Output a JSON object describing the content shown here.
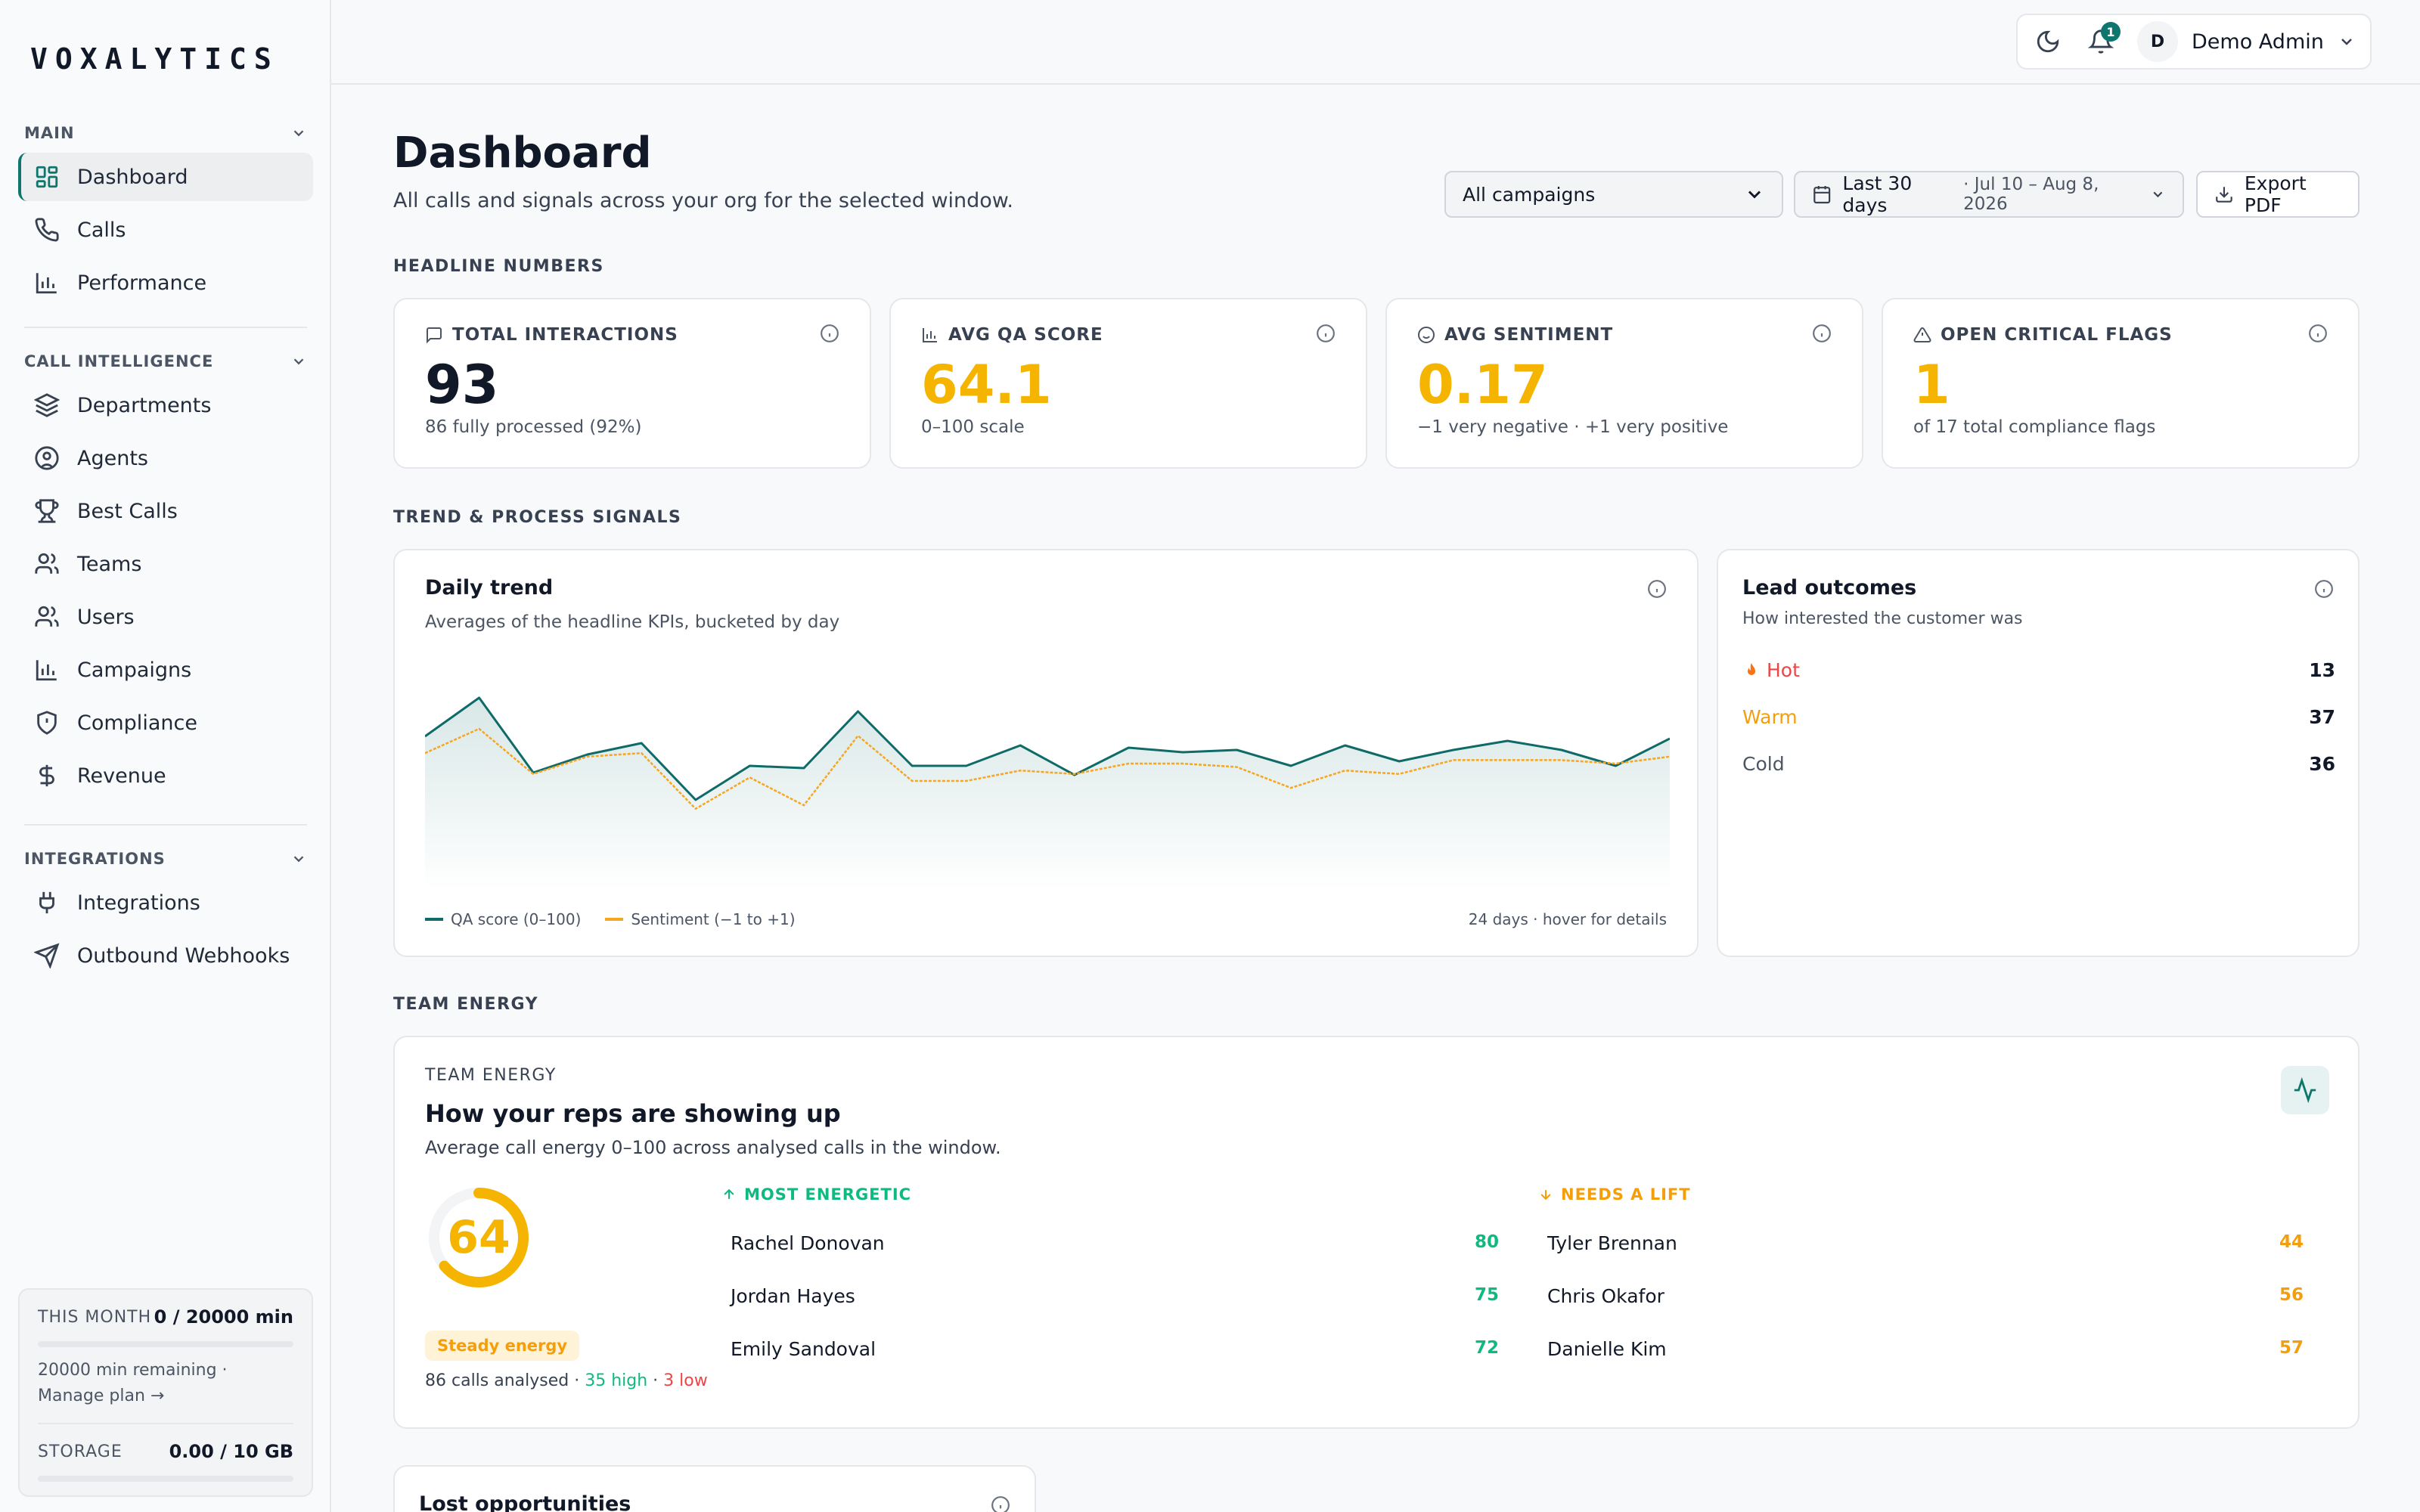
{
  "app": {
    "logo": "VOXALYTICS"
  },
  "sidebar": {
    "sections": [
      {
        "title": "MAIN",
        "items": [
          {
            "label": "Dashboard",
            "icon": "grid-icon",
            "active": true
          },
          {
            "label": "Calls",
            "icon": "phone-icon"
          },
          {
            "label": "Performance",
            "icon": "bar-chart-icon"
          }
        ]
      },
      {
        "title": "CALL INTELLIGENCE",
        "items": [
          {
            "label": "Departments",
            "icon": "layers-icon"
          },
          {
            "label": "Agents",
            "icon": "user-circle-icon"
          },
          {
            "label": "Best Calls",
            "icon": "trophy-icon"
          },
          {
            "label": "Teams",
            "icon": "users-icon"
          },
          {
            "label": "Users",
            "icon": "users-icon"
          },
          {
            "label": "Campaigns",
            "icon": "bar-chart-icon"
          },
          {
            "label": "Compliance",
            "icon": "shield-icon"
          },
          {
            "label": "Revenue",
            "icon": "dollar-icon"
          }
        ]
      },
      {
        "title": "INTEGRATIONS",
        "items": [
          {
            "label": "Integrations",
            "icon": "plug-icon"
          },
          {
            "label": "Outbound Webhooks",
            "icon": "send-icon"
          }
        ]
      }
    ],
    "usage": {
      "month_label": "THIS MONTH",
      "month_value": "0 / 20000 min",
      "note": "20000 min remaining · Manage plan →",
      "storage_label": "STORAGE",
      "storage_value": "0.00 / 10 GB"
    }
  },
  "topbar": {
    "notification_count": "1",
    "avatar_initial": "D",
    "user_name": "Demo Admin"
  },
  "header": {
    "title": "Dashboard",
    "subtitle": "All calls and signals across your org for the selected window.",
    "campaign_select": "All campaigns",
    "date_range_label": "Last 30 days",
    "date_range_dates": "· Jul 10 – Aug 8, 2026",
    "export_label": "Export PDF"
  },
  "headline": {
    "group_label": "HEADLINE NUMBERS",
    "kpis": [
      {
        "label": "TOTAL INTERACTIONS",
        "value": "93",
        "note": "86 fully processed (92%)",
        "icon": "message-icon",
        "color": "#111827"
      },
      {
        "label": "AVG QA SCORE",
        "value": "64.1",
        "note": "0–100 scale",
        "icon": "bar-chart-icon",
        "color": "#f5b400"
      },
      {
        "label": "AVG SENTIMENT",
        "value": "0.17",
        "note": "−1 very negative · +1 very positive",
        "icon": "smile-icon",
        "color": "#f5b400"
      },
      {
        "label": "OPEN CRITICAL FLAGS",
        "value": "1",
        "note": "of 17 total compliance flags",
        "icon": "alert-triangle-icon",
        "color": "#f5b400"
      }
    ]
  },
  "trend": {
    "group_label": "TREND & PROCESS SIGNALS",
    "title": "Daily trend",
    "subtitle": "Averages of the headline KPIs, bucketed by day",
    "legend_qa": "QA score (0–100)",
    "legend_sent": "Sentiment (−1 to +1)",
    "footer": "24 days · hover for details"
  },
  "chart_data": {
    "type": "line",
    "x": [
      1,
      2,
      3,
      4,
      5,
      6,
      7,
      8,
      9,
      10,
      11,
      12,
      13,
      14,
      15,
      16,
      17,
      18,
      19,
      20,
      21,
      22,
      23,
      24
    ],
    "series": [
      {
        "name": "QA score (0–100)",
        "color": "#0f6b68",
        "values": [
          68,
          85,
          52,
          60,
          65,
          40,
          55,
          54,
          79,
          55,
          55,
          64,
          51,
          63,
          61,
          62,
          55,
          64,
          57,
          62,
          66,
          62,
          55,
          67
        ]
      },
      {
        "name": "Sentiment (−1 to +1)",
        "color": "#f5a623",
        "values": [
          0.28,
          0.35,
          0.22,
          0.27,
          0.28,
          0.12,
          0.21,
          0.13,
          0.33,
          0.2,
          0.2,
          0.23,
          0.22,
          0.25,
          0.25,
          0.24,
          0.18,
          0.23,
          0.22,
          0.26,
          0.26,
          0.26,
          0.25,
          0.27
        ]
      }
    ],
    "title": "Daily trend",
    "grid": false
  },
  "leads": {
    "title": "Lead outcomes",
    "subtitle": "How interested the customer was",
    "rows": [
      {
        "label": "Hot",
        "value": "13",
        "color": "#ef4444",
        "icon": "fire-icon"
      },
      {
        "label": "Warm",
        "value": "37",
        "color": "#f59e0b"
      },
      {
        "label": "Cold",
        "value": "36",
        "color": "#4b5563"
      }
    ]
  },
  "energy": {
    "group_label": "TEAM ENERGY",
    "kicker": "TEAM ENERGY",
    "title": "How your reps are showing up",
    "subtitle": "Average call energy 0–100 across analysed calls in the window.",
    "score": "64",
    "score_value": 64,
    "pill": "Steady energy",
    "foot_calls": "86 calls analysed · ",
    "foot_high": "35 high",
    "foot_sep": " · ",
    "foot_low": "3 low",
    "top_label": "MOST ENERGETIC",
    "low_label": "NEEDS A LIFT",
    "top": [
      {
        "name": "Rachel Donovan",
        "score": "80"
      },
      {
        "name": "Jordan Hayes",
        "score": "75"
      },
      {
        "name": "Emily Sandoval",
        "score": "72"
      }
    ],
    "low": [
      {
        "name": "Tyler Brennan",
        "score": "44"
      },
      {
        "name": "Chris Okafor",
        "score": "56"
      },
      {
        "name": "Danielle Kim",
        "score": "57"
      }
    ]
  },
  "lost": {
    "title": "Lost opportunities"
  }
}
